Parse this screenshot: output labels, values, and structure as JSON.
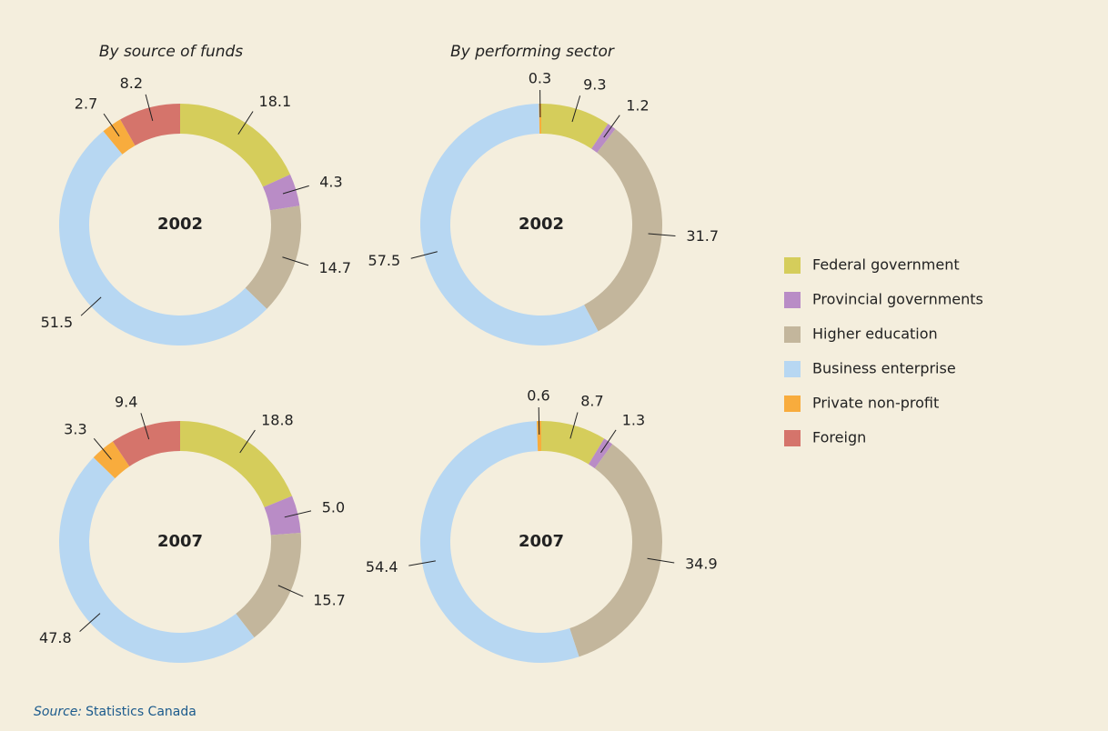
{
  "chart_data": [
    {
      "type": "pie",
      "donut": true,
      "title": "By source of funds",
      "center_label": "2002",
      "categories": [
        "Federal government",
        "Provincial governments",
        "Higher education",
        "Business enterprise",
        "Private non-profit",
        "Foreign"
      ],
      "values": [
        18.1,
        4.3,
        14.7,
        51.5,
        2.7,
        8.2
      ],
      "colors": [
        "#d5cd5b",
        "#b98cc6",
        "#c3b69c",
        "#b7d7f2",
        "#f8ac3d",
        "#d5746b"
      ]
    },
    {
      "type": "pie",
      "donut": true,
      "title": "By performing sector",
      "center_label": "2002",
      "categories": [
        "Federal government",
        "Provincial governments",
        "Higher education",
        "Business enterprise",
        "Private non-profit"
      ],
      "values": [
        9.3,
        1.2,
        31.7,
        57.5,
        0.3
      ],
      "colors": [
        "#d5cd5b",
        "#b98cc6",
        "#c3b69c",
        "#b7d7f2",
        "#f8ac3d"
      ]
    },
    {
      "type": "pie",
      "donut": true,
      "center_label": "2007",
      "categories": [
        "Federal government",
        "Provincial governments",
        "Higher education",
        "Business enterprise",
        "Private non-profit",
        "Foreign"
      ],
      "values": [
        18.8,
        5.0,
        15.7,
        47.8,
        3.3,
        9.4
      ],
      "value_labels": [
        "18.8",
        "5.0",
        "15.7",
        "47.8",
        "3.3",
        "9.4"
      ],
      "colors": [
        "#d5cd5b",
        "#b98cc6",
        "#c3b69c",
        "#b7d7f2",
        "#f8ac3d",
        "#d5746b"
      ]
    },
    {
      "type": "pie",
      "donut": true,
      "center_label": "2007",
      "categories": [
        "Federal government",
        "Provincial governments",
        "Higher education",
        "Business enterprise",
        "Private non-profit"
      ],
      "values": [
        8.7,
        1.3,
        34.9,
        54.4,
        0.6
      ],
      "colors": [
        "#d5cd5b",
        "#b98cc6",
        "#c3b69c",
        "#b7d7f2",
        "#f8ac3d"
      ]
    }
  ],
  "source": {
    "label": "Source:",
    "text": "Statistics Canada"
  }
}
